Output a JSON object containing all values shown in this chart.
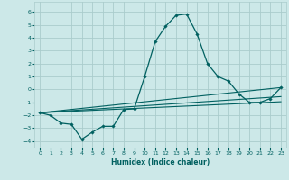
{
  "xlabel": "Humidex (Indice chaleur)",
  "xlim": [
    -0.5,
    23.5
  ],
  "ylim": [
    -4.5,
    6.8
  ],
  "xticks": [
    0,
    1,
    2,
    3,
    4,
    5,
    6,
    7,
    8,
    9,
    10,
    11,
    12,
    13,
    14,
    15,
    16,
    17,
    18,
    19,
    20,
    21,
    22,
    23
  ],
  "yticks": [
    -4,
    -3,
    -2,
    -1,
    0,
    1,
    2,
    3,
    4,
    5,
    6
  ],
  "bg_color": "#cce8e8",
  "grid_color": "#aacccc",
  "line_color": "#006060",
  "main_x": [
    0,
    1,
    2,
    3,
    4,
    5,
    6,
    7,
    8,
    9,
    10,
    11,
    12,
    13,
    14,
    15,
    16,
    17,
    18,
    19,
    20,
    21,
    22,
    23
  ],
  "main_y": [
    -1.8,
    -2.0,
    -2.6,
    -2.7,
    -3.85,
    -3.3,
    -2.85,
    -2.85,
    -1.55,
    -1.5,
    1.0,
    3.7,
    4.9,
    5.75,
    5.85,
    4.3,
    2.0,
    1.0,
    0.65,
    -0.35,
    -1.0,
    -1.0,
    -0.7,
    0.15
  ],
  "line1_x": [
    0,
    23
  ],
  "line1_y": [
    -1.8,
    0.15
  ],
  "line2_x": [
    0,
    23
  ],
  "line2_y": [
    -1.8,
    -0.55
  ],
  "line3_x": [
    0,
    23
  ],
  "line3_y": [
    -1.8,
    -0.95
  ]
}
